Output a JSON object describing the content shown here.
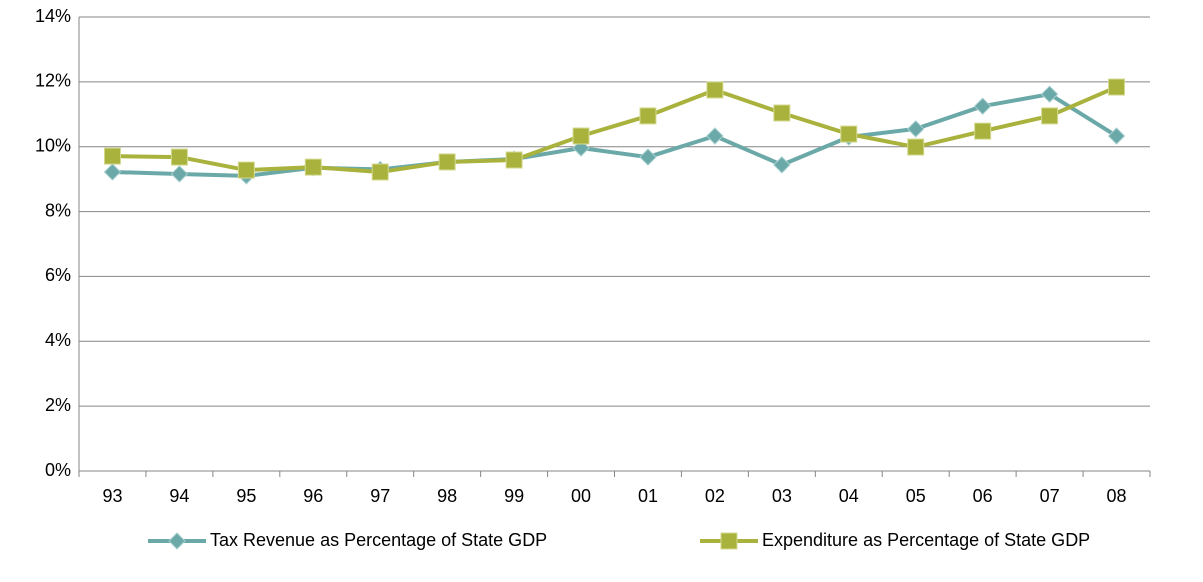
{
  "chart_data": {
    "type": "line",
    "categories": [
      "93",
      "94",
      "95",
      "96",
      "97",
      "98",
      "99",
      "00",
      "01",
      "02",
      "03",
      "04",
      "05",
      "06",
      "07",
      "08"
    ],
    "series": [
      {
        "name": "Tax Revenue as Percentage of State GDP",
        "color": "#6ba8a8",
        "marker": "diamond",
        "values": [
          9.22,
          9.16,
          9.1,
          9.35,
          9.3,
          9.53,
          9.62,
          9.96,
          9.68,
          10.33,
          9.44,
          10.3,
          10.55,
          11.25,
          11.62,
          10.33
        ]
      },
      {
        "name": "Expenditure as Percentage of State GDP",
        "color": "#a9b23c",
        "marker": "square",
        "values": [
          9.71,
          9.68,
          9.28,
          9.37,
          9.22,
          9.53,
          9.59,
          10.33,
          10.95,
          11.75,
          11.04,
          10.39,
          9.99,
          10.48,
          10.95,
          11.84
        ]
      }
    ],
    "ylim": [
      0,
      14
    ],
    "yticks": [
      {
        "value": 0,
        "label": "0%"
      },
      {
        "value": 2,
        "label": "2%"
      },
      {
        "value": 4,
        "label": "4%"
      },
      {
        "value": 6,
        "label": "6%"
      },
      {
        "value": 8,
        "label": "8%"
      },
      {
        "value": 10,
        "label": "10%"
      },
      {
        "value": 12,
        "label": "12%"
      },
      {
        "value": 14,
        "label": "14%"
      }
    ],
    "grid": true,
    "legend": "bottom"
  }
}
